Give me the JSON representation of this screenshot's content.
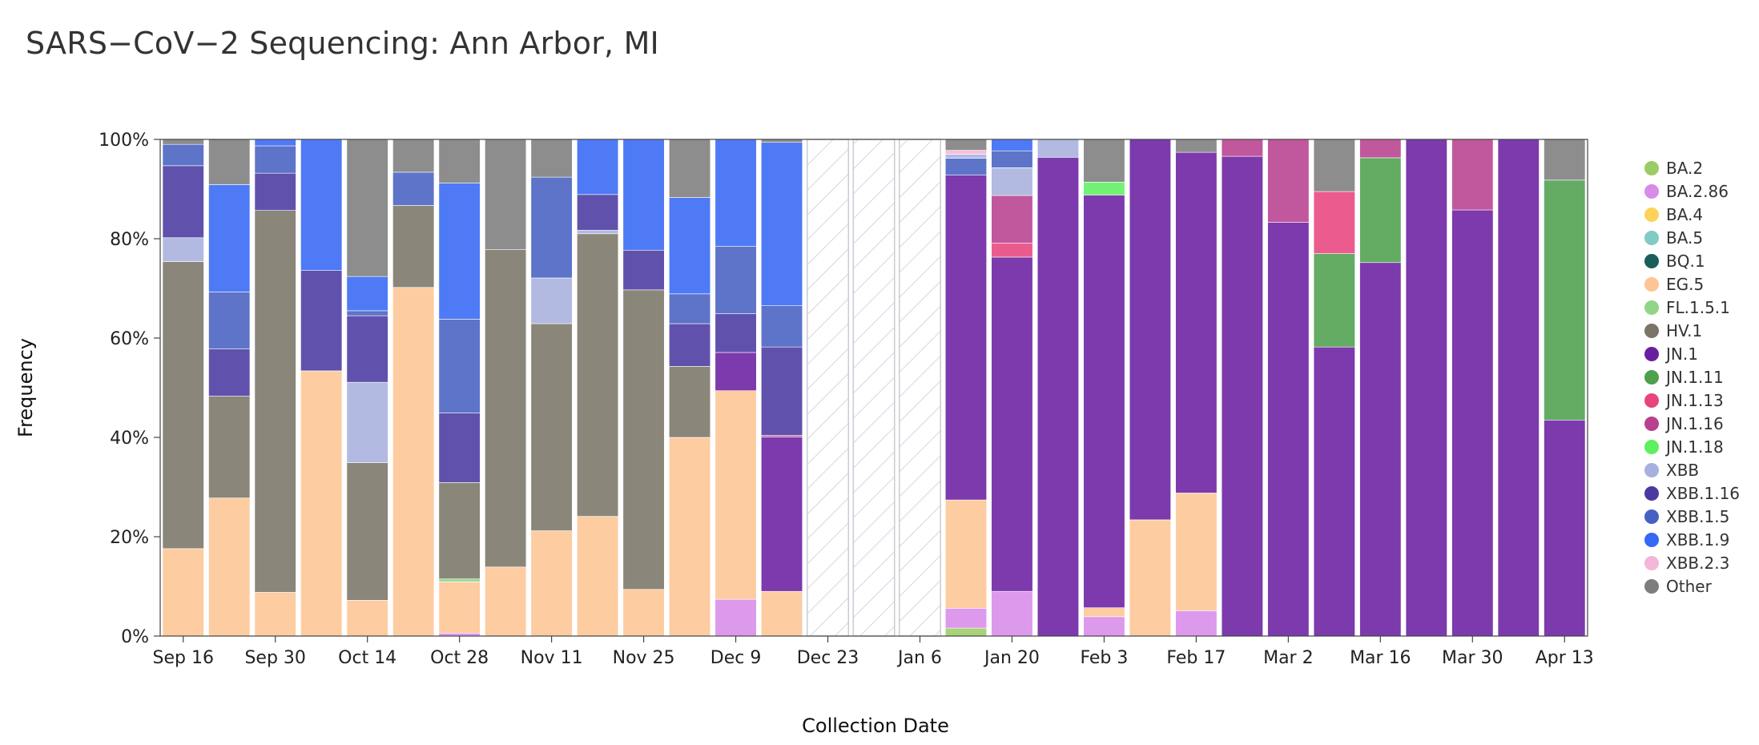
{
  "chart_data": {
    "type": "bar",
    "stacked": true,
    "title": "SARS−CoV−2 Sequencing: Ann Arbor, MI",
    "xlabel": "Collection Date",
    "ylabel": "Frequency",
    "ylim": [
      0,
      100
    ],
    "y_ticks": [
      "0%",
      "20%",
      "40%",
      "60%",
      "80%",
      "100%"
    ],
    "x_tick_labels": [
      "Sep 16",
      "Sep 30",
      "Oct 14",
      "Oct 28",
      "Nov 11",
      "Nov 25",
      "Dec 9",
      "Dec 23",
      "Jan 6",
      "Jan 20",
      "Feb 3",
      "Feb 17",
      "Mar 2",
      "Mar 16",
      "Mar 30",
      "Apr 13"
    ],
    "legend": [
      {
        "name": "BA.2",
        "color": "#9ccc65"
      },
      {
        "name": "BA.2.86",
        "color": "#d88be8"
      },
      {
        "name": "BA.4",
        "color": "#fdd35a"
      },
      {
        "name": "BA.5",
        "color": "#80cbc4"
      },
      {
        "name": "BQ.1",
        "color": "#1a5e5a"
      },
      {
        "name": "EG.5",
        "color": "#fdc594"
      },
      {
        "name": "FL.1.5.1",
        "color": "#93d587"
      },
      {
        "name": "HV.1",
        "color": "#7a7566"
      },
      {
        "name": "JN.1",
        "color": "#6a1fa0"
      },
      {
        "name": "JN.1.11",
        "color": "#4e9f4e"
      },
      {
        "name": "JN.1.13",
        "color": "#e8447e"
      },
      {
        "name": "JN.1.16",
        "color": "#b8408e"
      },
      {
        "name": "JN.1.18",
        "color": "#5ef05e"
      },
      {
        "name": "XBB",
        "color": "#a7b1de"
      },
      {
        "name": "XBB.1.16",
        "color": "#4a3aa0"
      },
      {
        "name": "XBB.1.5",
        "color": "#4761c2"
      },
      {
        "name": "XBB.1.9",
        "color": "#3568f5"
      },
      {
        "name": "XBB.2.3",
        "color": "#f4b6d8"
      },
      {
        "name": "Other",
        "color": "#7d7d7d"
      }
    ],
    "weeks": [
      {
        "week": "Sep 16",
        "segments": [
          [
            "EG.5",
            17.6
          ],
          [
            "HV.1",
            57.8
          ],
          [
            "XBB",
            4.8
          ],
          [
            "XBB.1.16",
            14.5
          ],
          [
            "XBB.1.5",
            4.3
          ],
          [
            "Other",
            1.0
          ]
        ]
      },
      {
        "week": "Sep 23",
        "segments": [
          [
            "EG.5",
            27.8
          ],
          [
            "HV.1",
            20.5
          ],
          [
            "XBB.1.16",
            9.5
          ],
          [
            "XBB.1.5",
            11.5
          ],
          [
            "XBB.1.9",
            21.6
          ],
          [
            "Other",
            9.1
          ]
        ]
      },
      {
        "week": "Sep 30",
        "segments": [
          [
            "EG.5",
            8.8
          ],
          [
            "HV.1",
            76.9
          ],
          [
            "XBB.1.16",
            7.5
          ],
          [
            "XBB.1.5",
            5.5
          ],
          [
            "XBB.1.9",
            1.3
          ]
        ]
      },
      {
        "week": "Oct 7",
        "segments": [
          [
            "EG.5",
            53.4
          ],
          [
            "XBB.1.16",
            20.2
          ],
          [
            "XBB.1.9",
            26.4
          ]
        ]
      },
      {
        "week": "Oct 14",
        "segments": [
          [
            "EG.5",
            7.2
          ],
          [
            "HV.1",
            27.7
          ],
          [
            "XBB",
            16.2
          ],
          [
            "XBB.1.16",
            13.4
          ],
          [
            "XBB.1.5",
            1.0
          ],
          [
            "XBB.1.9",
            6.9
          ],
          [
            "Other",
            27.6
          ]
        ]
      },
      {
        "week": "Oct 21",
        "segments": [
          [
            "EG.5",
            70.2
          ],
          [
            "HV.1",
            16.5
          ],
          [
            "XBB.1.5",
            6.7
          ],
          [
            "Other",
            6.6
          ]
        ]
      },
      {
        "week": "Oct 28",
        "segments": [
          [
            "BA.2.86",
            0.6
          ],
          [
            "EG.5",
            10.3
          ],
          [
            "FL.1.5.1",
            0.6
          ],
          [
            "HV.1",
            19.4
          ],
          [
            "XBB.1.16",
            14.0
          ],
          [
            "XBB.1.5",
            18.9
          ],
          [
            "XBB.1.9",
            27.4
          ],
          [
            "Other",
            8.8
          ]
        ]
      },
      {
        "week": "Nov 4",
        "segments": [
          [
            "EG.5",
            13.9
          ],
          [
            "HV.1",
            63.9
          ],
          [
            "Other",
            22.2
          ]
        ]
      },
      {
        "week": "Nov 11",
        "segments": [
          [
            "EG.5",
            21.2
          ],
          [
            "HV.1",
            41.7
          ],
          [
            "XBB",
            9.2
          ],
          [
            "XBB.1.5",
            20.3
          ],
          [
            "Other",
            7.6
          ]
        ]
      },
      {
        "week": "Nov 18",
        "segments": [
          [
            "EG.5",
            24.1
          ],
          [
            "HV.1",
            56.9
          ],
          [
            "XBB",
            0.7
          ],
          [
            "XBB.1.16",
            7.2
          ],
          [
            "XBB.1.9",
            11.1
          ]
        ]
      },
      {
        "week": "Nov 25",
        "segments": [
          [
            "EG.5",
            9.4
          ],
          [
            "HV.1",
            60.3
          ],
          [
            "XBB.1.16",
            8.0
          ],
          [
            "XBB.1.9",
            22.3
          ]
        ]
      },
      {
        "week": "Dec 2",
        "segments": [
          [
            "EG.5",
            40.0
          ],
          [
            "HV.1",
            14.3
          ],
          [
            "XBB.1.16",
            8.6
          ],
          [
            "XBB.1.5",
            6.0
          ],
          [
            "XBB.1.9",
            19.4
          ],
          [
            "Other",
            11.7
          ]
        ]
      },
      {
        "week": "Dec 9",
        "segments": [
          [
            "BA.2.86",
            7.4
          ],
          [
            "EG.5",
            42.0
          ],
          [
            "JN.1",
            7.7
          ],
          [
            "XBB.1.16",
            7.8
          ],
          [
            "XBB.1.5",
            13.6
          ],
          [
            "XBB.1.9",
            21.5
          ]
        ]
      },
      {
        "week": "Dec 16",
        "segments": [
          [
            "EG.5",
            9.0
          ],
          [
            "JN.1",
            31.1
          ],
          [
            "JN.1.16",
            0.3
          ],
          [
            "XBB.1.16",
            17.8
          ],
          [
            "XBB.1.5",
            8.3
          ],
          [
            "XBB.1.9",
            32.9
          ],
          [
            "Other",
            0.6
          ]
        ]
      },
      {
        "week": "Dec 23",
        "nodata": true,
        "segments": []
      },
      {
        "week": "Dec 30",
        "nodata": true,
        "segments": []
      },
      {
        "week": "Jan 6",
        "nodata": true,
        "segments": []
      },
      {
        "week": "Jan 13",
        "segments": [
          [
            "BA.2",
            1.6
          ],
          [
            "BA.2.86",
            4.0
          ],
          [
            "EG.5",
            21.8
          ],
          [
            "JN.1",
            65.4
          ],
          [
            "XBB.1.5",
            3.4
          ],
          [
            "XBB",
            0.8
          ],
          [
            "XBB.2.3",
            0.8
          ],
          [
            "Other",
            2.2
          ]
        ]
      },
      {
        "week": "Jan 20",
        "segments": [
          [
            "BA.2.86",
            9.0
          ],
          [
            "JN.1",
            67.3
          ],
          [
            "JN.1.13",
            2.8
          ],
          [
            "JN.1.16",
            9.6
          ],
          [
            "XBB",
            5.6
          ],
          [
            "XBB.1.5",
            3.4
          ],
          [
            "XBB.1.9",
            2.3
          ]
        ]
      },
      {
        "week": "Jan 27",
        "segments": [
          [
            "JN.1",
            96.4
          ],
          [
            "XBB",
            3.6
          ]
        ]
      },
      {
        "week": "Feb 3",
        "segments": [
          [
            "BA.2.86",
            3.9
          ],
          [
            "EG.5",
            1.8
          ],
          [
            "JN.1",
            83.1
          ],
          [
            "JN.1.18",
            2.6
          ],
          [
            "Other",
            8.6
          ]
        ]
      },
      {
        "week": "Feb 10",
        "segments": [
          [
            "EG.5",
            23.4
          ],
          [
            "JN.1",
            76.6
          ]
        ]
      },
      {
        "week": "Feb 17",
        "segments": [
          [
            "BA.2.86",
            5.1
          ],
          [
            "EG.5",
            23.7
          ],
          [
            "JN.1",
            68.6
          ],
          [
            "Other",
            2.6
          ]
        ]
      },
      {
        "week": "Feb 24",
        "segments": [
          [
            "JN.1",
            96.6
          ],
          [
            "JN.1.16",
            3.4
          ]
        ]
      },
      {
        "week": "Mar 2",
        "segments": [
          [
            "JN.1",
            83.3
          ],
          [
            "JN.1.16",
            16.7
          ]
        ]
      },
      {
        "week": "Mar 9",
        "segments": [
          [
            "JN.1",
            58.2
          ],
          [
            "JN.1.11",
            18.8
          ],
          [
            "JN.1.13",
            12.5
          ],
          [
            "Other",
            10.5
          ]
        ]
      },
      {
        "week": "Mar 16",
        "segments": [
          [
            "JN.1",
            75.2
          ],
          [
            "JN.1.11",
            21.1
          ],
          [
            "JN.1.16",
            3.7
          ]
        ]
      },
      {
        "week": "Mar 23",
        "segments": [
          [
            "JN.1",
            100
          ]
        ]
      },
      {
        "week": "Mar 30",
        "segments": [
          [
            "JN.1",
            85.8
          ],
          [
            "JN.1.16",
            14.2
          ]
        ]
      },
      {
        "week": "Apr 6",
        "segments": [
          [
            "JN.1",
            100
          ]
        ]
      },
      {
        "week": "Apr 13",
        "segments": [
          [
            "JN.1",
            43.5
          ],
          [
            "JN.1.11",
            48.3
          ],
          [
            "Other",
            8.2
          ]
        ]
      }
    ]
  }
}
